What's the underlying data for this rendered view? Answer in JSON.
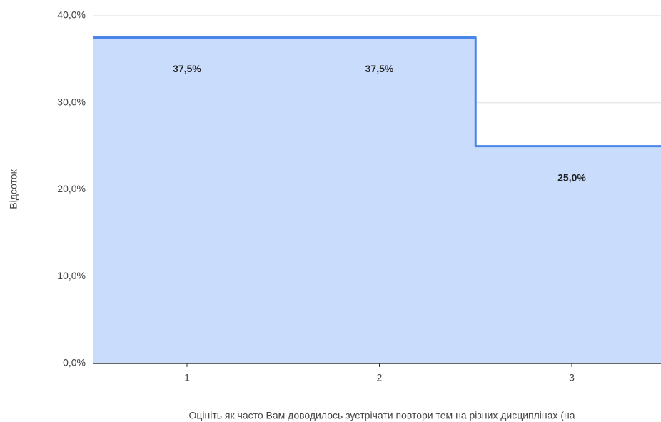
{
  "chart_data": {
    "type": "stepped-area",
    "categories": [
      "1",
      "2",
      "3"
    ],
    "values": [
      37.5,
      37.5,
      25
    ],
    "value_labels": [
      "37,5%",
      "37,5%",
      "25,0%"
    ],
    "color": "#4a86e8",
    "fill_color": "#c6dafc",
    "ylim": [
      0,
      40
    ],
    "yticks": [
      {
        "value": 0,
        "label": "0,0%"
      },
      {
        "value": 10,
        "label": "10,0%"
      },
      {
        "value": 20,
        "label": "20,0%"
      },
      {
        "value": 30,
        "label": "30,0%"
      },
      {
        "value": 40,
        "label": "40,0%"
      }
    ],
    "grid": true,
    "ylabel": "Відсоток",
    "xlabel": "Оцініть як часто Вам доводилось зустрічати повтори тем на різних дисциплінах (на"
  }
}
